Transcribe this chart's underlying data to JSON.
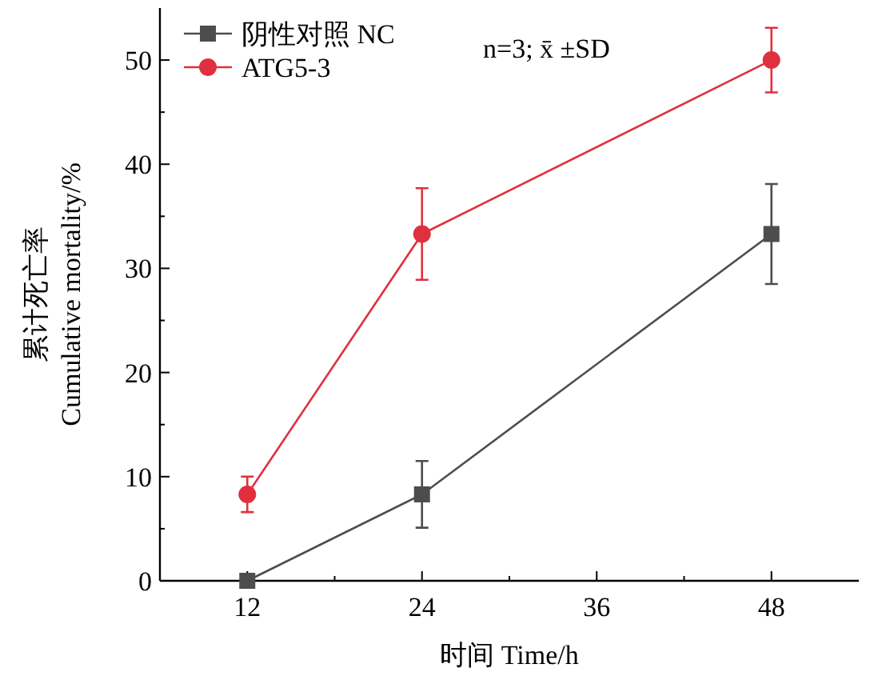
{
  "chart_data": {
    "type": "line",
    "xlabel": "时间 Time/h",
    "ylabel": "累计死亡率\nCumulative mortality/%",
    "x": [
      12,
      24,
      48
    ],
    "series": [
      {
        "name": "阴性对照 NC",
        "color": "#4d4d4d",
        "marker": "square",
        "values": [
          0,
          8.3,
          33.3
        ],
        "errors": [
          null,
          3.2,
          4.8
        ]
      },
      {
        "name": "ATG5-3",
        "color": "#e0303f",
        "marker": "circle",
        "values": [
          8.3,
          33.3,
          50
        ],
        "errors": [
          1.7,
          4.4,
          3.1
        ]
      }
    ],
    "xlim": [
      6,
      54
    ],
    "xticks": [
      {
        "value": 6,
        "label": null
      },
      12,
      {
        "value": 18,
        "label": null
      },
      24,
      {
        "value": 30,
        "label": null
      },
      36,
      {
        "value": 42,
        "label": null
      },
      48
    ],
    "ylim": [
      0,
      55
    ],
    "yticks": [
      0,
      {
        "value": 5,
        "label": null
      },
      10,
      {
        "value": 15,
        "label": null
      },
      20,
      {
        "value": 25,
        "label": null
      },
      30,
      {
        "value": 35,
        "label": null
      },
      40,
      {
        "value": 45,
        "label": null
      },
      50
    ],
    "annotations": [
      "n=3;  x̄ ±SD"
    ],
    "legend": "top left",
    "grid": false
  }
}
